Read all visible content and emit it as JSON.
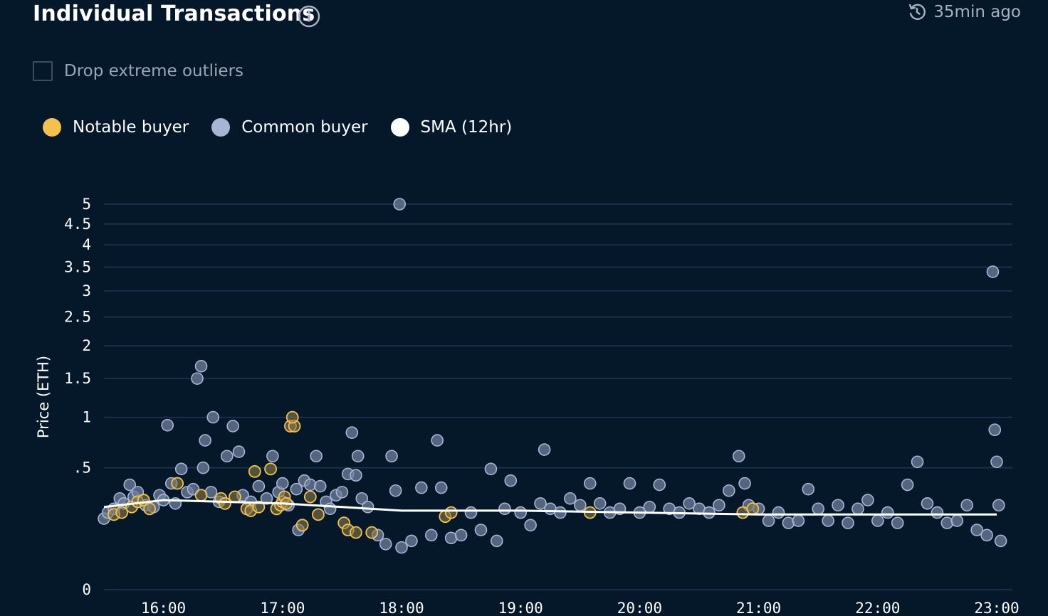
{
  "header": {
    "title": "Individual Transactions",
    "updated": "35min ago",
    "info_icon": "info-icon",
    "refresh_icon": "refresh-clock-icon"
  },
  "controls": {
    "drop_outliers_label": "Drop extreme outliers",
    "drop_outliers_checked": false
  },
  "colors": {
    "background": "#05182a",
    "notable": "#f2c14e",
    "common": "#a7b4d3",
    "sma": "#ffffff",
    "grid": "#1e3752"
  },
  "legend": [
    {
      "label": "Notable buyer",
      "color": "#f2c14e"
    },
    {
      "label": "Common buyer",
      "color": "#a7b4d3"
    },
    {
      "label": "SMA (12hr)",
      "color": "#ffffff"
    }
  ],
  "chart_data": {
    "type": "scatter",
    "title": "Individual Transactions",
    "ylabel": "Price (ETH)",
    "xlabel": "",
    "y_scale": "sqrt",
    "ylim": [
      0,
      5
    ],
    "y_ticks": [
      {
        "value": 0,
        "label": "0"
      },
      {
        "value": 0.5,
        "label": ".5"
      },
      {
        "value": 1,
        "label": "1"
      },
      {
        "value": 1.5,
        "label": "1.5"
      },
      {
        "value": 2,
        "label": "2"
      },
      {
        "value": 2.5,
        "label": "2.5"
      },
      {
        "value": 3,
        "label": "3"
      },
      {
        "value": 3.5,
        "label": "3.5"
      },
      {
        "value": 4,
        "label": "4"
      },
      {
        "value": 4.5,
        "label": "4.5"
      },
      {
        "value": 5,
        "label": "5"
      }
    ],
    "x_ticks": [
      "16:00",
      "17:00",
      "18:00",
      "19:00",
      "20:00",
      "21:00",
      "22:00",
      "23:00"
    ],
    "xlim": [
      "15:30",
      "23:00"
    ],
    "grid": true,
    "legend_position": "top-left",
    "series": [
      {
        "name": "Notable buyer",
        "points": [
          [
            "15:35",
            0.19
          ],
          [
            "15:39",
            0.2
          ],
          [
            "15:44",
            0.23
          ],
          [
            "15:47",
            0.26
          ],
          [
            "15:50",
            0.27
          ],
          [
            "15:53",
            0.22
          ],
          [
            "16:07",
            0.38
          ],
          [
            "16:19",
            0.3
          ],
          [
            "16:29",
            0.28
          ],
          [
            "16:31",
            0.25
          ],
          [
            "16:36",
            0.29
          ],
          [
            "16:42",
            0.22
          ],
          [
            "16:44",
            0.21
          ],
          [
            "16:48",
            0.23
          ],
          [
            "16:46",
            0.47
          ],
          [
            "16:54",
            0.49
          ],
          [
            "16:57",
            0.22
          ],
          [
            "16:59",
            0.24
          ],
          [
            "17:00",
            0.26
          ],
          [
            "17:01",
            0.29
          ],
          [
            "17:02",
            0.25
          ],
          [
            "17:04",
            0.9
          ],
          [
            "17:06",
            0.9
          ],
          [
            "17:05",
            1.0
          ],
          [
            "17:10",
            0.14
          ],
          [
            "17:14",
            0.29
          ],
          [
            "17:18",
            0.19
          ],
          [
            "17:31",
            0.15
          ],
          [
            "17:33",
            0.12
          ],
          [
            "17:37",
            0.11
          ],
          [
            "17:45",
            0.11
          ],
          [
            "19:35",
            0.2
          ],
          [
            "20:52",
            0.2
          ],
          [
            "20:57",
            0.22
          ],
          [
            "18:22",
            0.18
          ],
          [
            "18:25",
            0.2
          ]
        ]
      },
      {
        "name": "Common buyer",
        "points": [
          [
            "15:30",
            0.17
          ],
          [
            "15:32",
            0.2
          ],
          [
            "15:35",
            0.22
          ],
          [
            "15:38",
            0.28
          ],
          [
            "15:40",
            0.25
          ],
          [
            "15:43",
            0.37
          ],
          [
            "15:45",
            0.29
          ],
          [
            "15:47",
            0.32
          ],
          [
            "15:51",
            0.24
          ],
          [
            "15:55",
            0.23
          ],
          [
            "15:58",
            0.3
          ],
          [
            "16:00",
            0.27
          ],
          [
            "16:02",
            0.91
          ],
          [
            "16:04",
            0.38
          ],
          [
            "16:06",
            0.25
          ],
          [
            "16:09",
            0.49
          ],
          [
            "16:12",
            0.32
          ],
          [
            "16:15",
            0.34
          ],
          [
            "16:17",
            1.5
          ],
          [
            "16:19",
            1.68
          ],
          [
            "16:20",
            0.5
          ],
          [
            "16:21",
            0.75
          ],
          [
            "16:24",
            0.32
          ],
          [
            "16:25",
            1.0
          ],
          [
            "16:28",
            0.26
          ],
          [
            "16:32",
            0.6
          ],
          [
            "16:35",
            0.9
          ],
          [
            "16:38",
            0.64
          ],
          [
            "16:40",
            0.3
          ],
          [
            "16:44",
            0.26
          ],
          [
            "16:48",
            0.36
          ],
          [
            "16:52",
            0.28
          ],
          [
            "16:55",
            0.6
          ],
          [
            "16:58",
            0.32
          ],
          [
            "17:00",
            0.38
          ],
          [
            "17:03",
            0.24
          ],
          [
            "17:07",
            0.34
          ],
          [
            "17:08",
            0.12
          ],
          [
            "17:11",
            0.4
          ],
          [
            "17:14",
            0.37
          ],
          [
            "17:17",
            0.6
          ],
          [
            "17:19",
            0.36
          ],
          [
            "17:22",
            0.26
          ],
          [
            "17:24",
            0.22
          ],
          [
            "17:27",
            0.3
          ],
          [
            "17:30",
            0.32
          ],
          [
            "17:33",
            0.45
          ],
          [
            "17:35",
            0.83
          ],
          [
            "17:37",
            0.44
          ],
          [
            "17:38",
            0.6
          ],
          [
            "17:40",
            0.28
          ],
          [
            "17:43",
            0.23
          ],
          [
            "17:48",
            0.1
          ],
          [
            "17:52",
            0.07
          ],
          [
            "17:55",
            0.6
          ],
          [
            "17:57",
            0.33
          ],
          [
            "17:59",
            5.0
          ],
          [
            "18:00",
            0.06
          ],
          [
            "18:05",
            0.08
          ],
          [
            "18:10",
            0.35
          ],
          [
            "18:15",
            0.1
          ],
          [
            "18:18",
            0.75
          ],
          [
            "18:20",
            0.35
          ],
          [
            "18:25",
            0.09
          ],
          [
            "18:30",
            0.1
          ],
          [
            "18:35",
            0.2
          ],
          [
            "18:40",
            0.12
          ],
          [
            "18:45",
            0.49
          ],
          [
            "18:48",
            0.08
          ],
          [
            "18:52",
            0.22
          ],
          [
            "18:55",
            0.4
          ],
          [
            "19:00",
            0.2
          ],
          [
            "19:05",
            0.14
          ],
          [
            "19:10",
            0.25
          ],
          [
            "19:12",
            0.66
          ],
          [
            "19:15",
            0.22
          ],
          [
            "19:20",
            0.2
          ],
          [
            "19:25",
            0.28
          ],
          [
            "19:30",
            0.24
          ],
          [
            "19:35",
            0.38
          ],
          [
            "19:40",
            0.25
          ],
          [
            "19:45",
            0.2
          ],
          [
            "19:50",
            0.22
          ],
          [
            "19:55",
            0.38
          ],
          [
            "20:00",
            0.2
          ],
          [
            "20:05",
            0.23
          ],
          [
            "20:10",
            0.37
          ],
          [
            "20:15",
            0.22
          ],
          [
            "20:20",
            0.2
          ],
          [
            "20:25",
            0.25
          ],
          [
            "20:30",
            0.22
          ],
          [
            "20:35",
            0.2
          ],
          [
            "20:40",
            0.24
          ],
          [
            "20:45",
            0.33
          ],
          [
            "20:50",
            0.6
          ],
          [
            "20:53",
            0.38
          ],
          [
            "20:55",
            0.24
          ],
          [
            "21:00",
            0.22
          ],
          [
            "21:05",
            0.16
          ],
          [
            "21:10",
            0.2
          ],
          [
            "21:15",
            0.15
          ],
          [
            "21:20",
            0.16
          ],
          [
            "21:25",
            0.34
          ],
          [
            "21:30",
            0.22
          ],
          [
            "21:35",
            0.16
          ],
          [
            "21:40",
            0.24
          ],
          [
            "21:45",
            0.15
          ],
          [
            "21:50",
            0.22
          ],
          [
            "21:55",
            0.27
          ],
          [
            "22:00",
            0.16
          ],
          [
            "22:05",
            0.2
          ],
          [
            "22:10",
            0.15
          ],
          [
            "22:15",
            0.37
          ],
          [
            "22:20",
            0.55
          ],
          [
            "22:25",
            0.25
          ],
          [
            "22:30",
            0.2
          ],
          [
            "22:35",
            0.15
          ],
          [
            "22:40",
            0.16
          ],
          [
            "22:45",
            0.24
          ],
          [
            "22:50",
            0.12
          ],
          [
            "22:55",
            0.1
          ],
          [
            "22:58",
            3.4
          ],
          [
            "22:59",
            0.86
          ],
          [
            "23:00",
            0.55
          ],
          [
            "23:01",
            0.24
          ],
          [
            "23:02",
            0.08
          ]
        ]
      },
      {
        "name": "SMA (12hr)",
        "type": "line",
        "points": [
          [
            "15:30",
            0.23
          ],
          [
            "16:00",
            0.27
          ],
          [
            "16:30",
            0.26
          ],
          [
            "17:00",
            0.25
          ],
          [
            "17:30",
            0.23
          ],
          [
            "18:00",
            0.21
          ],
          [
            "19:00",
            0.21
          ],
          [
            "20:00",
            0.2
          ],
          [
            "21:00",
            0.19
          ],
          [
            "22:00",
            0.19
          ],
          [
            "23:00",
            0.19
          ]
        ]
      }
    ]
  }
}
